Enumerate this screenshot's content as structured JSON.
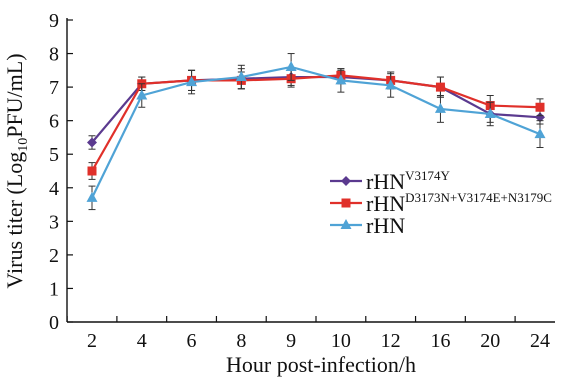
{
  "chart_data": {
    "type": "line",
    "title": "",
    "xlabel": "Hour post-infection/h",
    "ylabel": {
      "prefix": "Virus titer (Log",
      "subscript": "10",
      "suffix": "PFU/mL)"
    },
    "ylim": [
      0,
      9
    ],
    "yticks": [
      "0",
      "1",
      "2",
      "3",
      "4",
      "5",
      "6",
      "7",
      "8",
      "9"
    ],
    "categories": [
      "2",
      "4",
      "6",
      "8",
      "9",
      "10",
      "12",
      "16",
      "20",
      "24"
    ],
    "legend_position": "center-right",
    "grid": false,
    "series": [
      {
        "name": "rHNV3174Y",
        "name_base": "rHN",
        "name_sup": "V3174Y",
        "color": "#5b3a8f",
        "marker": "diamond",
        "values": [
          5.35,
          7.1,
          7.2,
          7.25,
          7.3,
          7.3,
          7.2,
          7.0,
          6.2,
          6.1
        ],
        "errors": [
          0.2,
          0.2,
          0.3,
          0.3,
          0.25,
          0.2,
          0.25,
          0.3,
          0.25,
          0.2
        ]
      },
      {
        "name": "rHND3173N+V3174E+N3179C",
        "name_base": "rHN",
        "name_sup": "D3173N+V3174E+N3179C",
        "color": "#e0302a",
        "marker": "square",
        "values": [
          4.5,
          7.1,
          7.2,
          7.2,
          7.25,
          7.35,
          7.2,
          7.0,
          6.45,
          6.4
        ],
        "errors": [
          0.25,
          0.2,
          0.3,
          0.25,
          0.25,
          0.2,
          0.25,
          0.3,
          0.3,
          0.25
        ]
      },
      {
        "name": "rHN",
        "name_base": "rHN",
        "name_sup": "",
        "color": "#4fa3d6",
        "marker": "triangle",
        "values": [
          3.7,
          6.75,
          7.15,
          7.3,
          7.6,
          7.2,
          7.05,
          6.35,
          6.2,
          5.6
        ],
        "errors": [
          0.35,
          0.35,
          0.35,
          0.35,
          0.4,
          0.35,
          0.35,
          0.4,
          0.35,
          0.4
        ]
      }
    ]
  }
}
